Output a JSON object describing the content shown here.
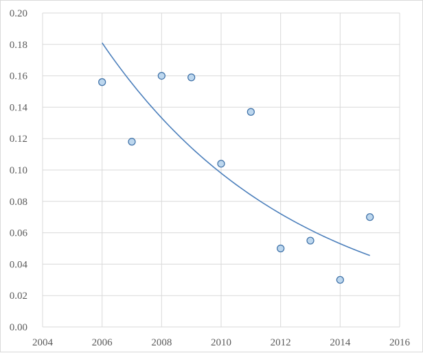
{
  "chart_data": {
    "type": "scatter",
    "title": "",
    "xlabel": "",
    "ylabel": "",
    "xlim": [
      2004,
      2016
    ],
    "ylim": [
      0,
      0.2
    ],
    "x_ticks": [
      "2004",
      "2006",
      "2008",
      "2010",
      "2012",
      "2014",
      "2016"
    ],
    "y_ticks": [
      "0.00",
      "0.02",
      "0.04",
      "0.06",
      "0.08",
      "0.10",
      "0.12",
      "0.14",
      "0.16",
      "0.18",
      "0.20"
    ],
    "grid": true,
    "legend": "none",
    "series": [
      {
        "marker_color": "#bdd7ee",
        "marker_edge_color": "#3b6ea5",
        "points": [
          {
            "x": 2006,
            "y": 0.156
          },
          {
            "x": 2007,
            "y": 0.118
          },
          {
            "x": 2008,
            "y": 0.16
          },
          {
            "x": 2009,
            "y": 0.159
          },
          {
            "x": 2010,
            "y": 0.104
          },
          {
            "x": 2011,
            "y": 0.137
          },
          {
            "x": 2012,
            "y": 0.05
          },
          {
            "x": 2013,
            "y": 0.055
          },
          {
            "x": 2014,
            "y": 0.03
          },
          {
            "x": 2015,
            "y": 0.07
          }
        ]
      }
    ],
    "trendline": {
      "type": "exponential",
      "color": "#4a7ebb",
      "x_range": [
        2006,
        2015
      ],
      "y_start": 0.181,
      "y_end": 0.0455
    }
  }
}
